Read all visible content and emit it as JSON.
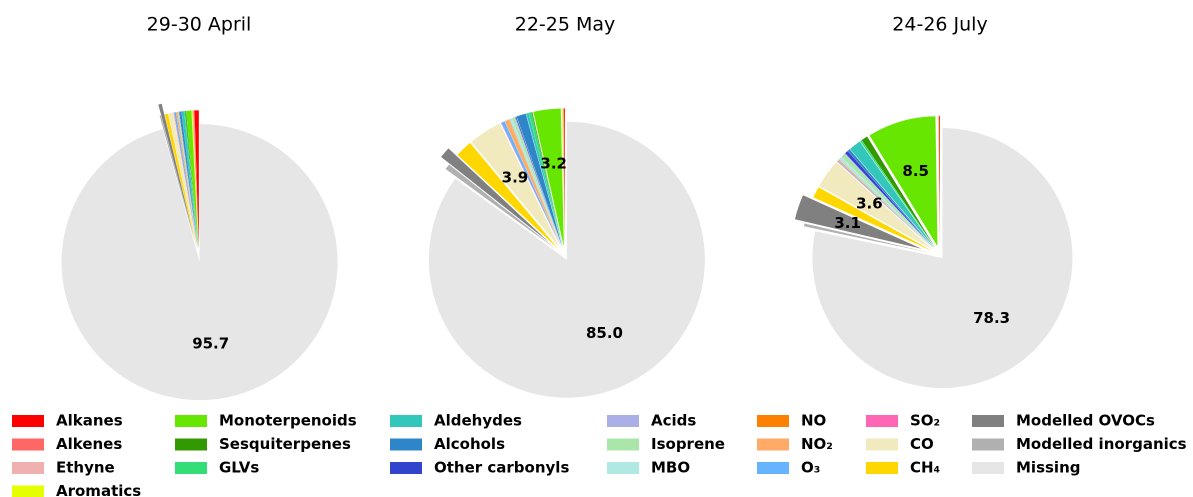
{
  "chart_data": [
    {
      "type": "pie",
      "title": "29-30 April",
      "categories": [
        "Alkanes",
        "Alkenes",
        "Ethyne",
        "Aromatics",
        "Monoterpenoids",
        "Sesquiterpenes",
        "GLVs",
        "Aldehydes",
        "Alcohols",
        "Other carbonyls",
        "Acids",
        "Isoprene",
        "MBO",
        "NO",
        "NO₂",
        "O₃",
        "SO₂",
        "CO",
        "CH₄",
        "Modelled OVOCs",
        "Modelled inorganics",
        "Missing"
      ],
      "colors": [
        "#ff0000",
        "#ff6666",
        "#f0b0b0",
        "#e6ff00",
        "#66e600",
        "#339900",
        "#33dd77",
        "#33c6bb",
        "#2e86c8",
        "#3344cc",
        "#aab0e6",
        "#aae6aa",
        "#b0e8e4",
        "#ff8000",
        "#ffaa66",
        "#66b3ff",
        "#ff66b3",
        "#f2eabf",
        "#ffd700",
        "#808080",
        "#b0b0b0",
        "#e6e6e6"
      ],
      "values": [
        0.5,
        0.1,
        0.1,
        0.1,
        0.6,
        0.1,
        0.1,
        0.3,
        0.2,
        0.05,
        0.05,
        0.1,
        0.05,
        0.05,
        0.1,
        0.2,
        0.05,
        0.6,
        0.4,
        0.4,
        0.15,
        95.7
      ],
      "value_labels": [
        null,
        null,
        null,
        null,
        null,
        null,
        null,
        null,
        null,
        null,
        null,
        null,
        null,
        null,
        null,
        null,
        null,
        null,
        null,
        null,
        null,
        "95.7"
      ]
    },
    {
      "type": "pie",
      "title": "22-25 May",
      "categories": [
        "Alkanes",
        "Alkenes",
        "Ethyne",
        "Aromatics",
        "Monoterpenoids",
        "Sesquiterpenes",
        "GLVs",
        "Aldehydes",
        "Alcohols",
        "Other carbonyls",
        "Acids",
        "Isoprene",
        "MBO",
        "NO",
        "NO₂",
        "O₃",
        "SO₂",
        "CO",
        "CH₄",
        "Modelled OVOCs",
        "Modelled inorganics",
        "Missing"
      ],
      "colors": [
        "#ff0000",
        "#ff6666",
        "#f0b0b0",
        "#e6ff00",
        "#66e600",
        "#339900",
        "#33dd77",
        "#33c6bb",
        "#2e86c8",
        "#3344cc",
        "#aab0e6",
        "#aae6aa",
        "#b0e8e4",
        "#ff8000",
        "#ffaa66",
        "#66b3ff",
        "#ff66b3",
        "#f2eabf",
        "#ffd700",
        "#808080",
        "#b0b0b0",
        "#e6e6e6"
      ],
      "values": [
        0.1,
        0.05,
        0.1,
        0.1,
        3.2,
        0.1,
        0.3,
        0.3,
        1.1,
        0.1,
        0.1,
        0.3,
        0.3,
        0.05,
        0.5,
        0.4,
        0.05,
        3.9,
        2.0,
        1.3,
        0.65,
        85.0
      ],
      "value_labels": [
        null,
        null,
        null,
        null,
        "3.2",
        null,
        null,
        null,
        null,
        null,
        null,
        null,
        null,
        null,
        null,
        null,
        null,
        "3.9",
        null,
        null,
        null,
        "85.0"
      ]
    },
    {
      "type": "pie",
      "title": "24-26 July",
      "categories": [
        "Alkanes",
        "Alkenes",
        "Ethyne",
        "Aromatics",
        "Monoterpenoids",
        "Sesquiterpenes",
        "GLVs",
        "Aldehydes",
        "Alcohols",
        "Other carbonyls",
        "Acids",
        "Isoprene",
        "MBO",
        "NO",
        "NO₂",
        "O₃",
        "SO₂",
        "CO",
        "CH₄",
        "Modelled OVOCs",
        "Modelled inorganics",
        "Missing"
      ],
      "colors": [
        "#ff0000",
        "#ff6666",
        "#f0b0b0",
        "#e6ff00",
        "#66e600",
        "#339900",
        "#33dd77",
        "#33c6bb",
        "#2e86c8",
        "#3344cc",
        "#aab0e6",
        "#aae6aa",
        "#b0e8e4",
        "#ff8000",
        "#ffaa66",
        "#66b3ff",
        "#ff66b3",
        "#f2eabf",
        "#ffd700",
        "#808080",
        "#b0b0b0",
        "#e6e6e6"
      ],
      "values": [
        0.1,
        0.05,
        0.05,
        0.05,
        8.5,
        0.8,
        0.2,
        1.5,
        0.3,
        0.4,
        0.1,
        0.5,
        0.4,
        0.05,
        0.1,
        0.1,
        0.05,
        3.6,
        1.4,
        3.1,
        0.35,
        78.3
      ],
      "value_labels": [
        null,
        null,
        null,
        null,
        "8.5",
        null,
        null,
        null,
        null,
        null,
        null,
        null,
        null,
        null,
        null,
        null,
        null,
        "3.6",
        null,
        "3.1",
        null,
        "78.3"
      ]
    }
  ]
}
